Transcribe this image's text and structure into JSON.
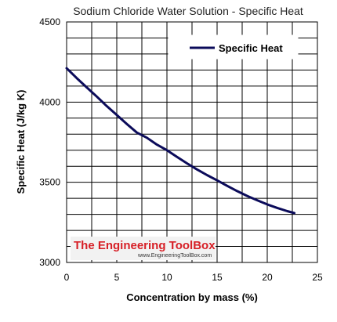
{
  "chart_data": {
    "type": "line",
    "title": "Sodium Chloride Water Solution - Specific Heat",
    "xlabel": "Concentration by mass (%)",
    "ylabel": "Specific Heat (J/kg K)",
    "xlim": [
      0,
      25
    ],
    "ylim": [
      3000,
      4500
    ],
    "x_ticks": [
      "0",
      "5",
      "10",
      "15",
      "20",
      "25"
    ],
    "y_ticks": [
      "3000",
      "3500",
      "4000",
      "4500"
    ],
    "grid": true,
    "legend_position": "top-right",
    "series": [
      {
        "name": "Specific Heat",
        "color": "#0b0b5a",
        "x": [
          0,
          1,
          2,
          3,
          4,
          5,
          6,
          7,
          8,
          9,
          10,
          11,
          12,
          13,
          14,
          15,
          16,
          17,
          18,
          19,
          20,
          21,
          22,
          22.7
        ],
        "y": [
          4211,
          4150,
          4092,
          4035,
          3975,
          3920,
          3864,
          3810,
          3778,
          3735,
          3700,
          3658,
          3618,
          3580,
          3545,
          3512,
          3478,
          3445,
          3415,
          3388,
          3362,
          3340,
          3320,
          3308
        ]
      }
    ]
  },
  "watermark": {
    "name": "The Engineering ToolBox",
    "url": "www.EngineeringToolBox.com"
  }
}
